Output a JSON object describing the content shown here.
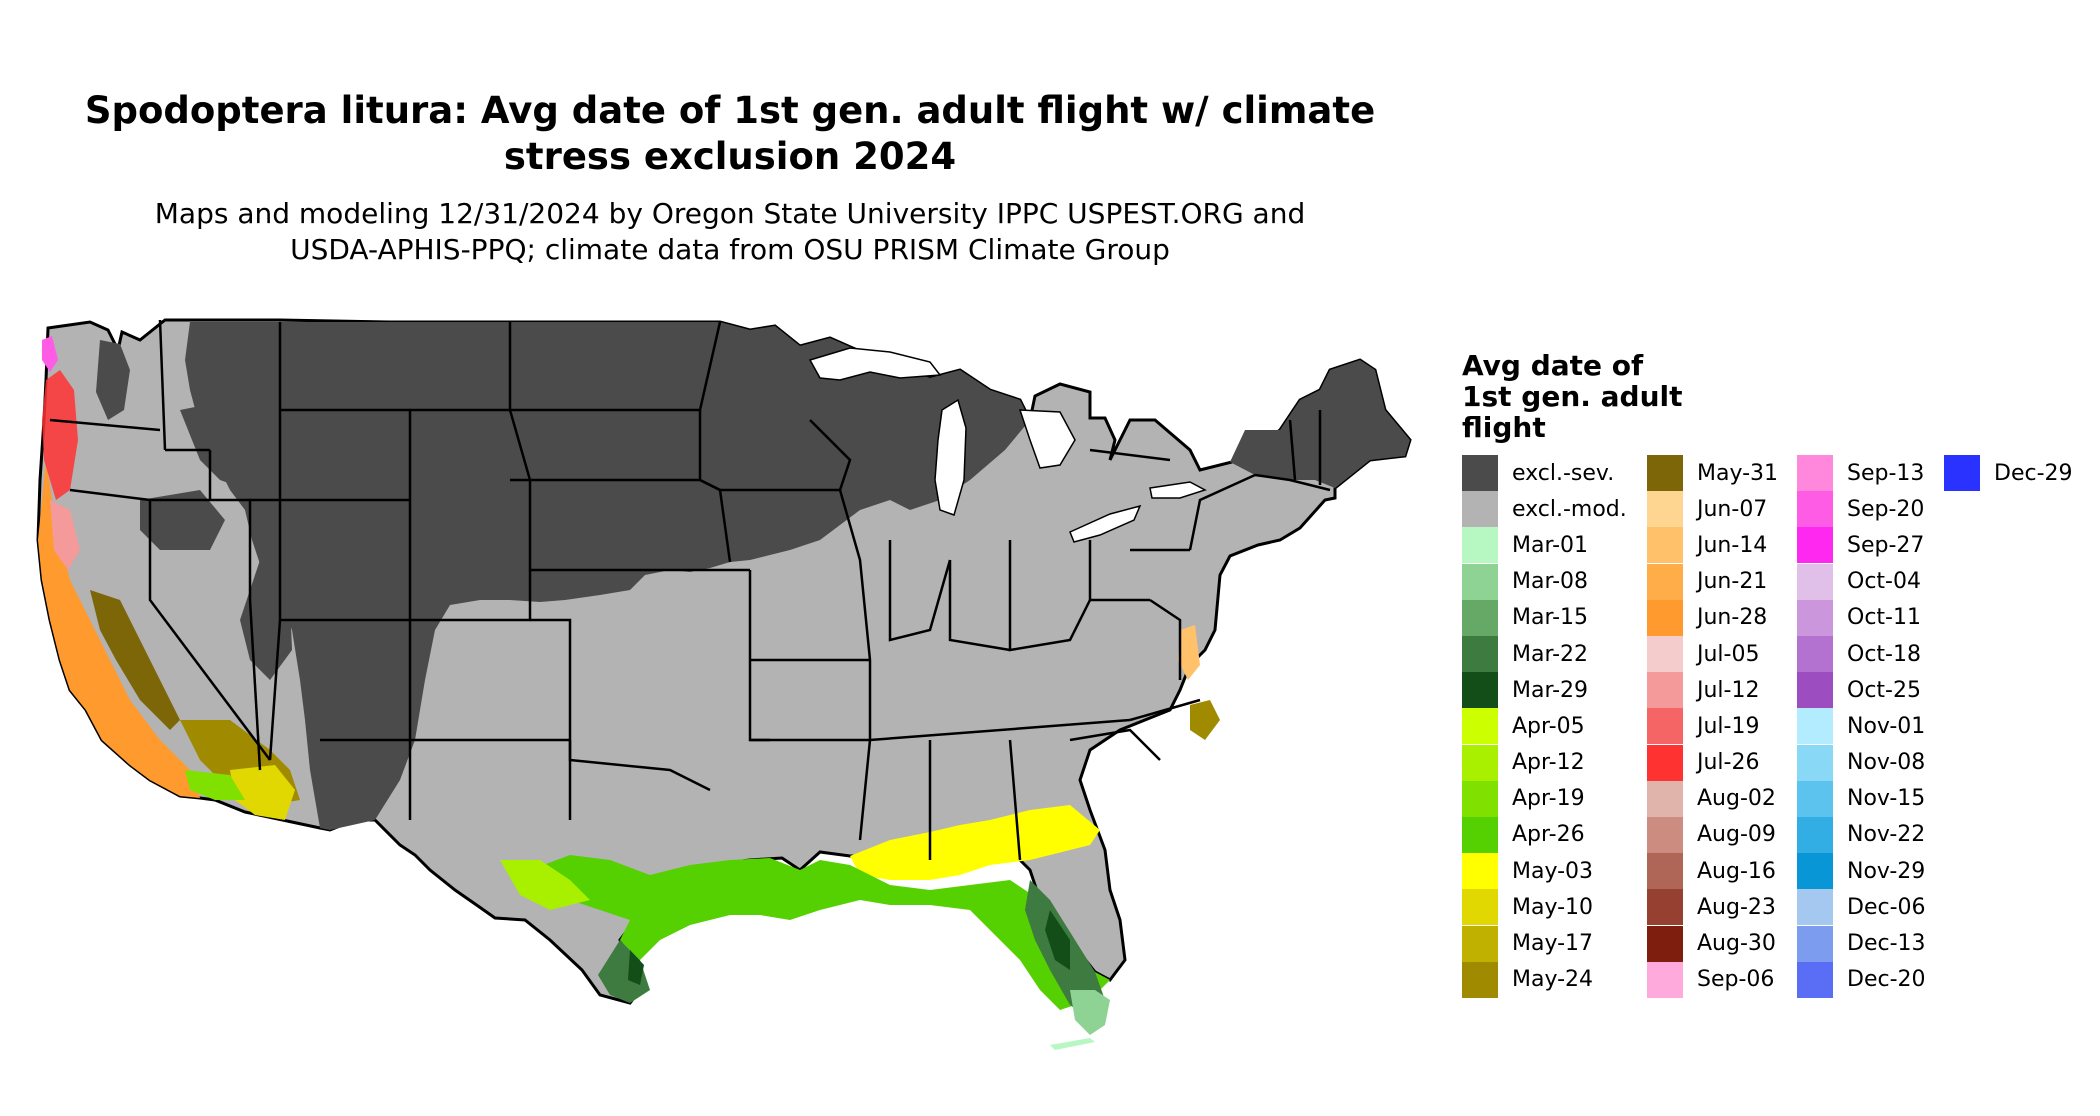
{
  "map": {
    "title": "Spodoptera litura: Avg date of 1st gen. adult flight w/ climate stress exclusion 2024",
    "title_line1": "Spodoptera litura: Avg date of 1st gen. adult flight w/ climate",
    "title_line2": "stress exclusion 2024",
    "subtitle_line1": "Maps and modeling 12/31/2024 by Oregon State University IPPC USPEST.ORG and",
    "subtitle_line2": "USDA-APHIS-PPQ; climate data from OSU PRISM Climate Group",
    "region": "Contiguous United States",
    "colors": {
      "excl_sev": "#4b4b4b",
      "excl_mod": "#b3b3b3",
      "border": "#000000"
    }
  },
  "legend": {
    "title_line1": "Avg date of",
    "title_line2": "1st gen. adult",
    "title_line3": "flight",
    "items": [
      {
        "label": "excl.-sev.",
        "color": "#4b4b4b"
      },
      {
        "label": "excl.-mod.",
        "color": "#b3b3b3"
      },
      {
        "label": "Mar-01",
        "color": "#b7f7c2"
      },
      {
        "label": "Mar-08",
        "color": "#8fd394"
      },
      {
        "label": "Mar-15",
        "color": "#66a866"
      },
      {
        "label": "Mar-22",
        "color": "#3e7b41"
      },
      {
        "label": "Mar-29",
        "color": "#134d17"
      },
      {
        "label": "Apr-05",
        "color": "#ccff00"
      },
      {
        "label": "Apr-12",
        "color": "#a8f000"
      },
      {
        "label": "Apr-19",
        "color": "#80e000"
      },
      {
        "label": "Apr-26",
        "color": "#55d000"
      },
      {
        "label": "May-03",
        "color": "#ffff00"
      },
      {
        "label": "May-10",
        "color": "#e0d800"
      },
      {
        "label": "May-17",
        "color": "#c0b000"
      },
      {
        "label": "May-24",
        "color": "#a08a00"
      },
      {
        "label": "May-31",
        "color": "#7d6608"
      },
      {
        "label": "Jun-07",
        "color": "#ffd592"
      },
      {
        "label": "Jun-14",
        "color": "#ffc26b"
      },
      {
        "label": "Jun-21",
        "color": "#ffad48"
      },
      {
        "label": "Jun-28",
        "color": "#ff9a2e"
      },
      {
        "label": "Jul-05",
        "color": "#f5cccc"
      },
      {
        "label": "Jul-12",
        "color": "#f59a9a"
      },
      {
        "label": "Jul-19",
        "color": "#f56565"
      },
      {
        "label": "Jul-26",
        "color": "#ff3232"
      },
      {
        "label": "Aug-02",
        "color": "#e0b4aa"
      },
      {
        "label": "Aug-09",
        "color": "#cc8c7f"
      },
      {
        "label": "Aug-16",
        "color": "#b06656"
      },
      {
        "label": "Aug-23",
        "color": "#964032"
      },
      {
        "label": "Aug-30",
        "color": "#7d1e0e"
      },
      {
        "label": "Sep-06",
        "color": "#ffaadd"
      },
      {
        "label": "Sep-13",
        "color": "#ff88dd"
      },
      {
        "label": "Sep-20",
        "color": "#ff5ce6"
      },
      {
        "label": "Sep-27",
        "color": "#ff28f0"
      },
      {
        "label": "Oct-04",
        "color": "#e0bfe8"
      },
      {
        "label": "Oct-11",
        "color": "#cc96dc"
      },
      {
        "label": "Oct-18",
        "color": "#b472d0"
      },
      {
        "label": "Oct-25",
        "color": "#9c4ec0"
      },
      {
        "label": "Nov-01",
        "color": "#b4ecff"
      },
      {
        "label": "Nov-08",
        "color": "#88d8f6"
      },
      {
        "label": "Nov-15",
        "color": "#5cc2ee"
      },
      {
        "label": "Nov-22",
        "color": "#32aee4"
      },
      {
        "label": "Nov-29",
        "color": "#0896d6"
      },
      {
        "label": "Dec-06",
        "color": "#a5c8f0"
      },
      {
        "label": "Dec-13",
        "color": "#7c9cf0"
      },
      {
        "label": "Dec-20",
        "color": "#5a6ef5"
      },
      {
        "label": "Dec-29",
        "color": "#2a32ff"
      }
    ]
  }
}
